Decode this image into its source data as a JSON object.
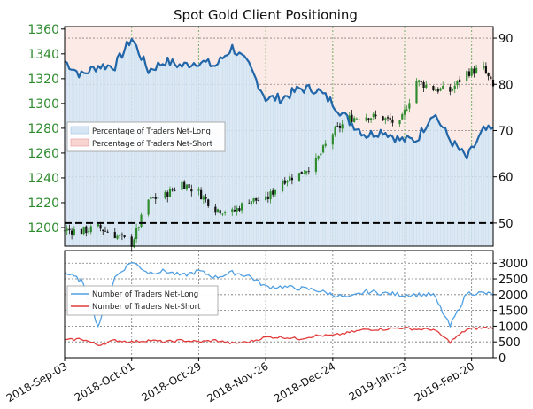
{
  "chart_data": {
    "type": "line",
    "title": "Spot Gold Client Positioning",
    "x_tick_labels": [
      "2018-Sep-03",
      "2018-Oct-01",
      "2018-Oct-29",
      "2018-Nov-26",
      "2018-Dec-24",
      "2019-Jan-23",
      "2019-Feb-20"
    ],
    "x_range": [
      "2018-09-03",
      "2019-03-01"
    ],
    "grid": true,
    "colors": {
      "price_up": "#2e8b2e",
      "price_down": "#111111",
      "net_long_pct": "#2166a8",
      "net_long_fill": "#d6e6f4",
      "net_short_fill": "#f8d4d0",
      "long_traders": "#4f9fe3",
      "short_traders": "#e23b3b",
      "axis_left_text": "#2e8b2e"
    },
    "top_panel": {
      "left_axis": {
        "ticks": [
          1200,
          1220,
          1240,
          1260,
          1280,
          1300,
          1320,
          1340,
          1360
        ],
        "range": [
          1185,
          1362
        ]
      },
      "right_axis": {
        "ticks": [
          50,
          60,
          70,
          80,
          90
        ],
        "range": [
          45,
          92.5
        ]
      },
      "reference_line": 50,
      "legend": {
        "position": "left",
        "entries": [
          "Percentage of Traders Net-Long",
          "Percentage of Traders Net-Short"
        ]
      },
      "price_series": {
        "dates": [
          "2018-09-03",
          "2018-09-10",
          "2018-09-17",
          "2018-09-24",
          "2018-10-01",
          "2018-10-08",
          "2018-10-15",
          "2018-10-22",
          "2018-10-29",
          "2018-11-05",
          "2018-11-12",
          "2018-11-19",
          "2018-11-26",
          "2018-12-03",
          "2018-12-10",
          "2018-12-17",
          "2018-12-24",
          "2018-12-31",
          "2019-01-07",
          "2019-01-14",
          "2019-01-21",
          "2019-01-28",
          "2019-02-04",
          "2019-02-11",
          "2019-02-18",
          "2019-02-25",
          "2019-03-01"
        ],
        "close": [
          1198,
          1197,
          1200,
          1194,
          1187,
          1222,
          1226,
          1236,
          1228,
          1215,
          1212,
          1222,
          1222,
          1238,
          1243,
          1253,
          1276,
          1288,
          1290,
          1288,
          1283,
          1318,
          1312,
          1310,
          1325,
          1328,
          1313
        ]
      },
      "net_long_pct_series": {
        "dates": [
          "2018-09-03",
          "2018-09-10",
          "2018-09-17",
          "2018-09-24",
          "2018-10-01",
          "2018-10-08",
          "2018-10-15",
          "2018-10-22",
          "2018-10-29",
          "2018-11-05",
          "2018-11-12",
          "2018-11-19",
          "2018-11-26",
          "2018-12-03",
          "2018-12-10",
          "2018-12-17",
          "2018-12-24",
          "2018-12-31",
          "2019-01-07",
          "2019-01-14",
          "2019-01-21",
          "2019-01-28",
          "2019-02-04",
          "2019-02-11",
          "2019-02-18",
          "2019-02-25",
          "2019-03-01"
        ],
        "values": [
          85,
          82,
          84,
          84,
          90,
          83,
          85,
          84,
          85,
          84,
          88,
          84,
          77,
          77,
          79,
          79,
          76,
          72,
          69,
          70,
          68,
          68,
          74,
          68,
          64,
          70,
          70
        ]
      }
    },
    "bottom_panel": {
      "right_axis": {
        "ticks": [
          0,
          500,
          1000,
          1500,
          2000,
          2500,
          3000
        ],
        "range": [
          0,
          3400
        ]
      },
      "legend": {
        "position": "left",
        "entries": [
          "Number of Traders Net-Long",
          "Number of Traders Net-Short"
        ]
      },
      "long_series": {
        "dates": [
          "2018-09-03",
          "2018-09-10",
          "2018-09-17",
          "2018-09-24",
          "2018-10-01",
          "2018-10-08",
          "2018-10-15",
          "2018-10-22",
          "2018-10-29",
          "2018-11-05",
          "2018-11-12",
          "2018-11-19",
          "2018-11-26",
          "2018-12-03",
          "2018-12-10",
          "2018-12-17",
          "2018-12-24",
          "2018-12-31",
          "2019-01-07",
          "2019-01-14",
          "2019-01-21",
          "2019-01-28",
          "2019-02-04",
          "2019-02-11",
          "2019-02-18",
          "2019-02-25",
          "2019-03-01"
        ],
        "values": [
          2700,
          2450,
          1000,
          2550,
          3050,
          2700,
          2750,
          2600,
          2750,
          2550,
          2700,
          2600,
          2250,
          2250,
          2200,
          2150,
          2000,
          1900,
          2100,
          2050,
          2000,
          2000,
          2000,
          1000,
          2050,
          2050,
          2000
        ]
      },
      "short_series": {
        "dates": [
          "2018-09-03",
          "2018-09-10",
          "2018-09-17",
          "2018-09-24",
          "2018-10-01",
          "2018-10-08",
          "2018-10-15",
          "2018-10-22",
          "2018-10-29",
          "2018-11-05",
          "2018-11-12",
          "2018-11-19",
          "2018-11-26",
          "2018-12-03",
          "2018-12-10",
          "2018-12-17",
          "2018-12-24",
          "2018-12-31",
          "2019-01-07",
          "2019-01-14",
          "2019-01-21",
          "2019-01-28",
          "2019-02-04",
          "2019-02-11",
          "2019-02-18",
          "2019-02-25",
          "2019-03-01"
        ],
        "values": [
          550,
          600,
          400,
          550,
          500,
          550,
          500,
          550,
          500,
          550,
          450,
          500,
          650,
          650,
          600,
          700,
          700,
          800,
          900,
          900,
          950,
          900,
          900,
          500,
          900,
          950,
          950
        ]
      }
    }
  }
}
